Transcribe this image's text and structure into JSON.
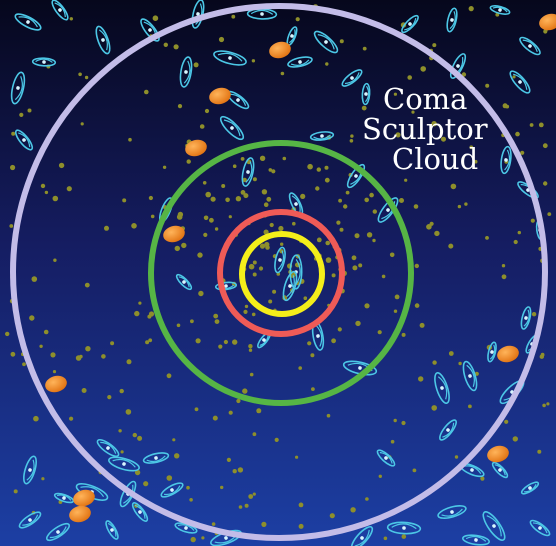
{
  "image": {
    "description_free": true
  },
  "label": {
    "lines": [
      "Coma",
      "Sculptor",
      "Cloud"
    ]
  },
  "colors": {
    "background_top": "#06071c",
    "background_mid": "#151d62",
    "background_bottom": "#1c3fa4",
    "ring_outer": "#c3bce8",
    "ring_green": "#56b545",
    "ring_red": "#ef5b57",
    "ring_yellow": "#f4ee1a",
    "dot": "#8e8f2b",
    "spiral": "#4cc7e6",
    "elliptical": "#f08a1e"
  },
  "rings": [
    {
      "name": "outer-ring",
      "color_key": "ring_outer"
    },
    {
      "name": "green-ring",
      "color_key": "ring_green"
    },
    {
      "name": "red-ring",
      "color_key": "ring_red"
    },
    {
      "name": "yellow-ring",
      "color_key": "ring_yellow"
    }
  ]
}
